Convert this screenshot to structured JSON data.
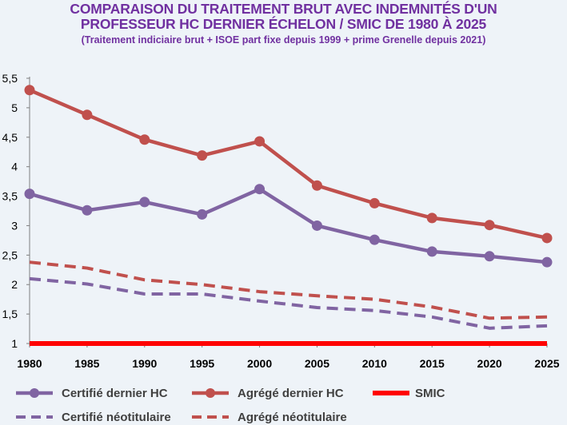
{
  "chart_data": {
    "type": "line",
    "title_line1": "COMPARAISON DU TRAITEMENT BRUT AVEC INDEMNITÉS D'UN",
    "title_line2": "PROFESSEUR HC DERNIER ÉCHELON / SMIC DE 1980 À 2025",
    "subtitle": "(Traitement indiciaire brut + ISOE part fixe depuis 1999 + prime Grenelle depuis 2021)",
    "x": [
      1980,
      1985,
      1990,
      1995,
      2000,
      2005,
      2010,
      2015,
      2020,
      2025
    ],
    "x_tick_labels": [
      "1980",
      "1985",
      "1990",
      "1995",
      "2000",
      "2005",
      "2010",
      "2015",
      "2020",
      "2025"
    ],
    "ylim": [
      1,
      5.5
    ],
    "y_ticks": [
      1,
      1.5,
      2,
      2.5,
      3,
      3.5,
      4,
      4.5,
      5,
      5.5
    ],
    "y_tick_labels": [
      "1",
      "1,5",
      "2",
      "2,5",
      "3",
      "3,5",
      "4",
      "4,5",
      "5",
      "5,5"
    ],
    "grid": false,
    "legend_position": "bottom",
    "series": [
      {
        "name": "Certifié dernier HC",
        "style": "solid-marker",
        "color": "#8064a2",
        "values": [
          3.54,
          3.26,
          3.4,
          3.19,
          3.62,
          3.0,
          2.76,
          2.56,
          2.48,
          2.38
        ]
      },
      {
        "name": "Agrégé dernier HC",
        "style": "solid-marker",
        "color": "#c0504d",
        "values": [
          5.3,
          4.88,
          4.46,
          4.19,
          4.43,
          3.68,
          3.38,
          3.13,
          3.01,
          2.79
        ]
      },
      {
        "name": "SMIC",
        "style": "solid-thick",
        "color": "#ff0000",
        "values": [
          1,
          1,
          1,
          1,
          1,
          1,
          1,
          1,
          1,
          1
        ]
      },
      {
        "name": "Certifié néotitulaire",
        "style": "dashed",
        "color": "#8064a2",
        "values": [
          2.1,
          2.01,
          1.84,
          1.84,
          1.72,
          1.61,
          1.56,
          1.45,
          1.26,
          1.3
        ]
      },
      {
        "name": "Agrégé néotitulaire",
        "style": "dashed",
        "color": "#c0504d",
        "values": [
          2.38,
          2.28,
          2.08,
          2.0,
          1.88,
          1.81,
          1.75,
          1.62,
          1.43,
          1.45
        ]
      }
    ]
  }
}
